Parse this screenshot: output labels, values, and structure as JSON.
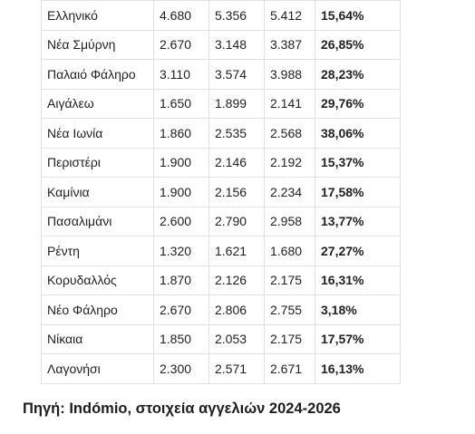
{
  "table": {
    "rows": [
      {
        "area": "Ελληνικό",
        "v1": "4.680",
        "v2": "5.356",
        "v3": "5.412",
        "change": "15,64%"
      },
      {
        "area": "Νέα Σμύρνη",
        "v1": "2.670",
        "v2": "3.148",
        "v3": "3.387",
        "change": "26,85%"
      },
      {
        "area": "Παλαιό Φάληρο",
        "v1": "3.110",
        "v2": "3.574",
        "v3": "3.988",
        "change": "28,23%"
      },
      {
        "area": "Αιγάλεω",
        "v1": "1.650",
        "v2": "1.899",
        "v3": "2.141",
        "change": "29,76%"
      },
      {
        "area": "Νέα Ιωνία",
        "v1": "1.860",
        "v2": "2.535",
        "v3": "2.568",
        "change": "38,06%"
      },
      {
        "area": "Περιστέρι",
        "v1": "1.900",
        "v2": "2.146",
        "v3": "2.192",
        "change": "15,37%"
      },
      {
        "area": "Καμίνια",
        "v1": "1.900",
        "v2": "2.156",
        "v3": "2.234",
        "change": "17,58%"
      },
      {
        "area": "Πασαλιμάνι",
        "v1": "2.600",
        "v2": "2.790",
        "v3": "2.958",
        "change": "13,77%"
      },
      {
        "area": "Ρέντη",
        "v1": "1.320",
        "v2": "1.621",
        "v3": "1.680",
        "change": "27,27%"
      },
      {
        "area": "Κορυδαλλός",
        "v1": "1.870",
        "v2": "2.126",
        "v3": "2.175",
        "change": "16,31%"
      },
      {
        "area": "Νέο Φάληρο",
        "v1": "2.670",
        "v2": "2.806",
        "v3": "2.755",
        "change": "3,18%"
      },
      {
        "area": "Νίκαια",
        "v1": "1.850",
        "v2": "2.053",
        "v3": "2.175",
        "change": "17,57%"
      },
      {
        "area": "Λαγονήσι",
        "v1": "2.300",
        "v2": "2.571",
        "v3": "2.671",
        "change": "16,13%"
      }
    ]
  },
  "source": "Πηγή: Indómio, στοιχεία αγγελιών 2024-2026",
  "colors": {
    "border": "#e2e2e2",
    "text": "#222222"
  }
}
